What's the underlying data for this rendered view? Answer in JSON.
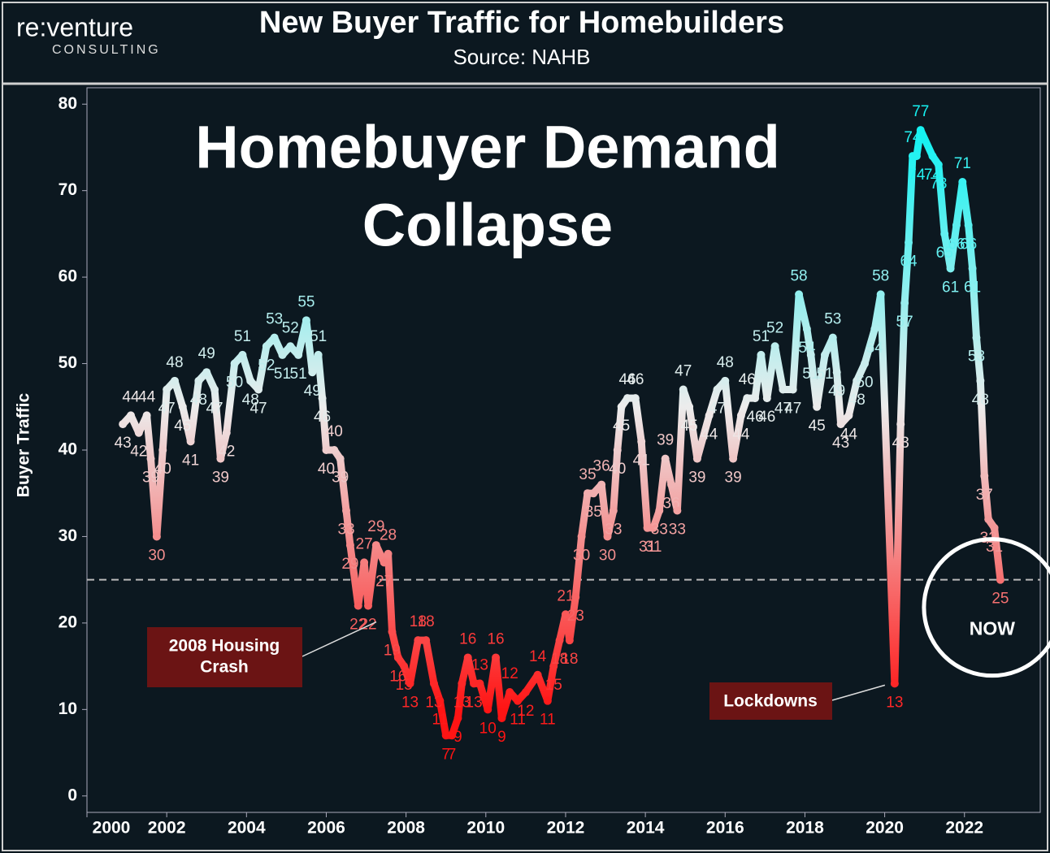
{
  "header": {
    "logo": "re:venture",
    "logo_sub": "CONSULTING",
    "title": "New Buyer Traffic for Homebuilders",
    "subtitle": "Source: NAHB"
  },
  "chart_data": {
    "type": "line",
    "title_lines": [
      "Homebuyer Demand",
      "Collapse"
    ],
    "y_label": "Buyer Traffic",
    "xlim": [
      2000,
      2023.9
    ],
    "xticks": [
      2000,
      2002,
      2004,
      2006,
      2008,
      2010,
      2012,
      2014,
      2016,
      2018,
      2020,
      2022
    ],
    "ylim": [
      -1.9,
      81.9
    ],
    "yticks": [
      0,
      10,
      20,
      30,
      40,
      50,
      60,
      70,
      80
    ],
    "reference_line": 25,
    "color_stops": [
      {
        "value": 10,
        "color": "#ff1414"
      },
      {
        "value": 45,
        "color": "#ececec"
      },
      {
        "value": 76,
        "color": "#16f2f2"
      }
    ],
    "x": [
      2000.9,
      2001.1,
      2001.3,
      2001.5,
      2001.6,
      2001.75,
      2001.9,
      2002.0,
      2002.2,
      2002.4,
      2002.6,
      2002.8,
      2003.0,
      2003.2,
      2003.35,
      2003.5,
      2003.7,
      2003.9,
      2004.1,
      2004.3,
      2004.5,
      2004.7,
      2004.9,
      2005.1,
      2005.3,
      2005.5,
      2005.65,
      2005.8,
      2005.9,
      2006.0,
      2006.2,
      2006.35,
      2006.5,
      2006.6,
      2006.8,
      2006.95,
      2007.05,
      2007.25,
      2007.45,
      2007.55,
      2007.65,
      2007.8,
      2007.95,
      2008.1,
      2008.3,
      2008.5,
      2008.7,
      2008.85,
      2009.0,
      2009.15,
      2009.3,
      2009.4,
      2009.55,
      2009.7,
      2009.85,
      2010.05,
      2010.25,
      2010.4,
      2010.6,
      2010.8,
      2011.0,
      2011.3,
      2011.55,
      2011.7,
      2011.85,
      2012.0,
      2012.1,
      2012.25,
      2012.4,
      2012.55,
      2012.7,
      2012.9,
      2013.05,
      2013.2,
      2013.3,
      2013.4,
      2013.55,
      2013.75,
      2013.9,
      2014.05,
      2014.2,
      2014.35,
      2014.5,
      2014.65,
      2014.8,
      2014.95,
      2015.1,
      2015.3,
      2015.6,
      2015.8,
      2016.0,
      2016.2,
      2016.4,
      2016.55,
      2016.75,
      2016.9,
      2017.05,
      2017.25,
      2017.45,
      2017.7,
      2017.85,
      2018.05,
      2018.15,
      2018.3,
      2018.5,
      2018.7,
      2018.8,
      2018.9,
      2019.1,
      2019.3,
      2019.5,
      2019.75,
      2019.9,
      2020.25,
      2020.4,
      2020.5,
      2020.6,
      2020.7,
      2020.8,
      2020.9,
      2021.2,
      2021.35,
      2021.5,
      2021.65,
      2021.8,
      2021.95,
      2022.1,
      2022.2,
      2022.3,
      2022.4,
      2022.5,
      2022.6,
      2022.75,
      2022.9
    ],
    "series": [
      {
        "name": "Buyer Traffic",
        "values": [
          43,
          44,
          42,
          44,
          39,
          30,
          40,
          47,
          48,
          45,
          41,
          48,
          49,
          47,
          39,
          42,
          50,
          51,
          48,
          47,
          52,
          53,
          51,
          52,
          51,
          55,
          49,
          51,
          46,
          40,
          40,
          39,
          33,
          29,
          22,
          27,
          22,
          29,
          27,
          28,
          19,
          16,
          15,
          13,
          18,
          18,
          13,
          11,
          7,
          7,
          9,
          13,
          16,
          13,
          13,
          10,
          16,
          9,
          12,
          11,
          12,
          14,
          11,
          15,
          18,
          21,
          18,
          23,
          30,
          35,
          35,
          36,
          30,
          33,
          40,
          45,
          46,
          46,
          41,
          31,
          31,
          33,
          39,
          36,
          33,
          47,
          45,
          39,
          44,
          47,
          48,
          39,
          44,
          46,
          46,
          51,
          46,
          52,
          47,
          47,
          58,
          54,
          51,
          45,
          51,
          53,
          49,
          43,
          44,
          48,
          50,
          54,
          58,
          13,
          43,
          57,
          64,
          74,
          74,
          77,
          74,
          73,
          65,
          61,
          66,
          71,
          66,
          61,
          53,
          48,
          37,
          32,
          31,
          25
        ]
      }
    ],
    "annotations": [
      {
        "lines": [
          "2008 Housing",
          "Crash"
        ],
        "x": 2007.05,
        "y": 22
      },
      {
        "lines": [
          "Lockdowns"
        ],
        "x": 2020.25,
        "y": 13
      },
      {
        "lines": [
          "NOW"
        ],
        "x": 2022.9,
        "y": 25
      }
    ]
  }
}
